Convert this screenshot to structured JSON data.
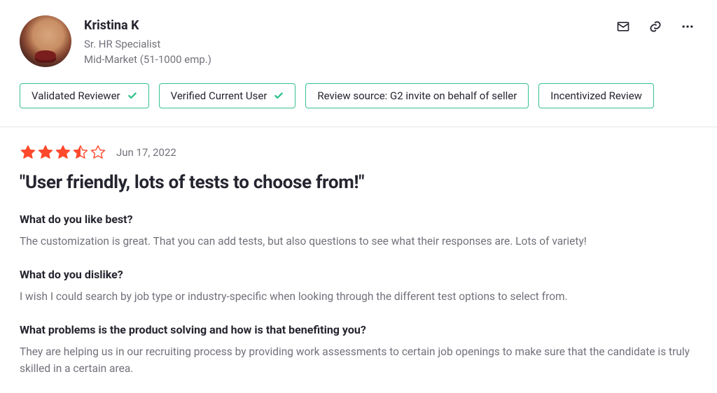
{
  "reviewer": {
    "name": "Kristina K",
    "role": "Sr. HR Specialist",
    "segment": "Mid-Market (51-1000 emp.)"
  },
  "badges": [
    {
      "label": "Validated Reviewer",
      "has_check": true
    },
    {
      "label": "Verified Current User",
      "has_check": true
    },
    {
      "label": "Review source: G2 invite on behalf of seller",
      "has_check": false
    },
    {
      "label": "Incentivized Review",
      "has_check": false
    }
  ],
  "rating": {
    "value": 3.5,
    "max": 5,
    "fill_color": "#ff492c",
    "empty_color": "#ffffff",
    "stroke_color": "#ff492c"
  },
  "date": "Jun 17, 2022",
  "title": "\"User friendly, lots of tests to choose from!\"",
  "qa": [
    {
      "q": "What do you like best?",
      "a": "The customization is great. That you can add tests, but also questions to see what their responses are. Lots of variety!"
    },
    {
      "q": "What do you dislike?",
      "a": "I wish I could search by job type or industry-specific when looking through the different test options to select from."
    },
    {
      "q": "What problems is the product solving and how is that benefiting you?",
      "a": "They are helping us in our recruiting process by providing work assessments to certain job openings to make sure that the candidate is truly skilled in a certain area."
    }
  ],
  "colors": {
    "badge_border": "#34c28c",
    "text_primary": "#252530",
    "text_secondary": "#71717a"
  }
}
